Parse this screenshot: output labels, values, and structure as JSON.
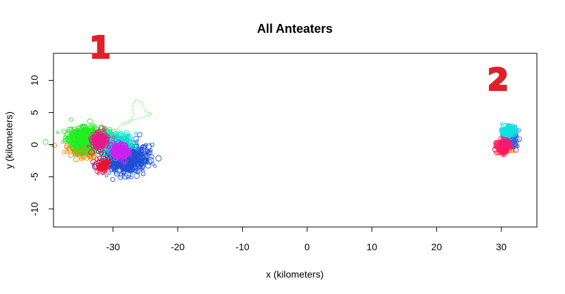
{
  "chart_data": {
    "type": "scatter",
    "title": "All Anteaters",
    "xlabel": "x (kilometers)",
    "ylabel": "y (kilometers)",
    "xlim": [
      -39.2,
      35.5
    ],
    "ylim": [
      -12.8,
      14.2
    ],
    "xticks": [
      -30,
      -20,
      -10,
      0,
      10,
      20,
      30
    ],
    "yticks": [
      -10,
      -5,
      0,
      5,
      10
    ],
    "grid": false,
    "legend": "none",
    "annotations": [
      {
        "text": "1",
        "x": -32,
        "y": 13.5,
        "color": "#e0202a",
        "style": "handwritten"
      },
      {
        "text": "2",
        "x": 29.5,
        "y": 8.5,
        "color": "#e0202a",
        "style": "handwritten"
      }
    ],
    "series": [
      {
        "color": "#ff7f00",
        "cluster": {
          "cx": -34.5,
          "cy": -0.8,
          "sx": 1.3,
          "sy": 0.6,
          "n": 180
        }
      },
      {
        "color": "#22ee22",
        "cluster": {
          "cx": -34.0,
          "cy": 1.1,
          "sx": 1.6,
          "sy": 0.8,
          "n": 600
        },
        "path": [
          [
            -31.0,
            1.0
          ],
          [
            -30.0,
            1.8
          ],
          [
            -29.0,
            2.8
          ],
          [
            -27.5,
            3.5
          ],
          [
            -26.8,
            4.5
          ],
          [
            -27.0,
            5.8
          ],
          [
            -26.5,
            7.0
          ],
          [
            -25.5,
            6.5
          ],
          [
            -25.0,
            5.2
          ],
          [
            -24.0,
            4.8
          ],
          [
            -25.5,
            4.2
          ],
          [
            -27.0,
            3.8
          ],
          [
            -29.0,
            3.2
          ]
        ]
      },
      {
        "color": "#1f4fd8",
        "cluster": {
          "cx": -28.0,
          "cy": -2.2,
          "sx": 1.6,
          "sy": 1.1,
          "n": 650
        }
      },
      {
        "color": "#00e5d0",
        "cluster": {
          "cx": -29.5,
          "cy": 0.2,
          "sx": 1.2,
          "sy": 0.9,
          "n": 220
        }
      },
      {
        "color": "#e8198a",
        "cluster": {
          "cx": -32.0,
          "cy": 0.7,
          "sx": 0.55,
          "sy": 0.55,
          "n": 220
        }
      },
      {
        "color": "#cc22ee",
        "cluster": {
          "cx": -29.0,
          "cy": -1.0,
          "sx": 0.7,
          "sy": 0.6,
          "n": 180
        }
      },
      {
        "color": "#ee1133",
        "cluster": {
          "cx": -31.6,
          "cy": -3.2,
          "sx": 0.5,
          "sy": 0.6,
          "n": 60
        }
      },
      {
        "color": "#ff8c00",
        "cluster": {
          "cx": 30.6,
          "cy": -0.3,
          "sx": 0.6,
          "sy": 0.5,
          "n": 80
        }
      },
      {
        "color": "#3a5fe6",
        "cluster": {
          "cx": 31.4,
          "cy": 0.9,
          "sx": 0.6,
          "sy": 0.7,
          "n": 180
        }
      },
      {
        "color": "#10e0e0",
        "cluster": {
          "cx": 31.1,
          "cy": 2.1,
          "sx": 0.45,
          "sy": 0.35,
          "n": 150
        }
      },
      {
        "color": "#ff1a66",
        "cluster": {
          "cx": 30.3,
          "cy": -0.4,
          "sx": 0.45,
          "sy": 0.45,
          "n": 200
        }
      }
    ]
  }
}
